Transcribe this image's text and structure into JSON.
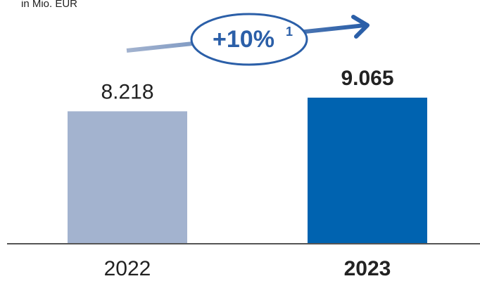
{
  "chart_data": {
    "type": "bar",
    "subtitle": "in Mio. EUR",
    "categories": [
      "2022",
      "2023"
    ],
    "values": [
      8218,
      9065
    ],
    "value_labels": [
      "8.218",
      "9.065"
    ],
    "colors": [
      "#a3b3cf",
      "#0063b0"
    ],
    "bold": [
      false,
      true
    ],
    "annotation": "+10%",
    "annotation_footnote": "1"
  }
}
